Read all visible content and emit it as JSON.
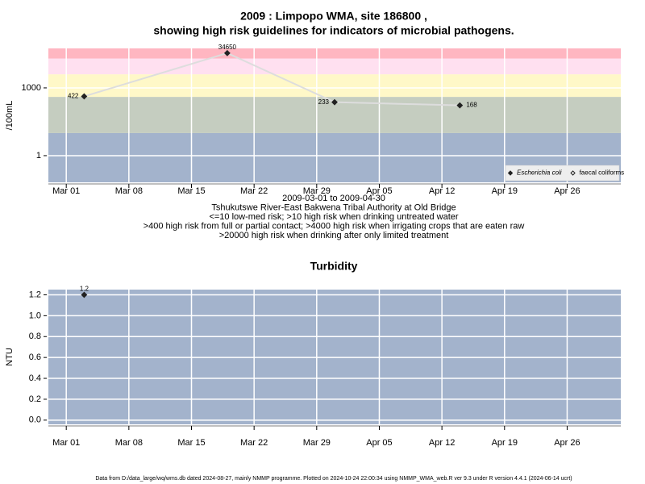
{
  "chart_data": [
    {
      "type": "line",
      "title": [
        "2009 : Limpopo WMA, site 186800 ,",
        "showing high risk guidelines for indicators of microbial pathogens."
      ],
      "ylabel": "/100mL",
      "notes": [
        "2009-03-01 to 2009-04-30",
        "Tshukutswe River-East Bakwena Tribal Authority at Old Bridge",
        "<=10 low-med risk; >10 high risk when drinking untreated water",
        ">400 high risk from full or partial contact; >4000 high risk when irrigating crops that are eaten raw",
        ">20000 high risk when drinking after only limited treatment"
      ],
      "x": [
        "2009-03-03",
        "2009-03-19",
        "2009-03-31",
        "2009-04-14"
      ],
      "series": [
        {
          "name": "Escherichia coli",
          "color": "#222222",
          "marker": "filled",
          "line_color": "#dddddd",
          "values": [
            422,
            34650,
            233,
            168
          ]
        },
        {
          "name": "faecal coliforms",
          "color": "#222222",
          "marker": "open",
          "line_color": "#dddddd",
          "values": [
            null,
            null,
            null,
            null
          ]
        }
      ],
      "xlim": [
        "2009-02-27",
        "2009-05-02"
      ],
      "xticks": [
        {
          "value": "2009-03-01",
          "label": "Mar 01"
        },
        {
          "value": "2009-03-08",
          "label": "Mar 08"
        },
        {
          "value": "2009-03-15",
          "label": "Mar 15"
        },
        {
          "value": "2009-03-22",
          "label": "Mar 22"
        },
        {
          "value": "2009-03-29",
          "label": "Mar 29"
        },
        {
          "value": "2009-04-05",
          "label": "Apr 05"
        },
        {
          "value": "2009-04-12",
          "label": "Apr 12"
        },
        {
          "value": "2009-04-19",
          "label": "Apr 19"
        },
        {
          "value": "2009-04-26",
          "label": "Apr 26"
        }
      ],
      "ylim": [
        0.066,
        56000
      ],
      "yticks": [
        1,
        1000
      ],
      "yscale": "log",
      "grid": true,
      "bands": [
        {
          "upto": 10,
          "color": "#a3b3cc"
        },
        {
          "upto": 400,
          "color": "#c5cdc0"
        },
        {
          "upto": 4000,
          "color": "#fff8c8"
        },
        {
          "upto": 20000,
          "color": "#ffe0f0"
        },
        {
          "color": "#ffb6c1"
        }
      ],
      "legend": "lower right"
    },
    {
      "type": "line",
      "title": [
        "Turbidity"
      ],
      "ylabel": "NTU",
      "x": [
        "2009-03-03"
      ],
      "series": [
        {
          "color": "#222222",
          "marker": "filled",
          "line_color": "#dddddd",
          "values": [
            1.2
          ]
        }
      ],
      "xlim": [
        "2009-02-27",
        "2009-05-02"
      ],
      "xticks": [
        {
          "value": "2009-03-01",
          "label": "Mar 01"
        },
        {
          "value": "2009-03-08",
          "label": "Mar 08"
        },
        {
          "value": "2009-03-15",
          "label": "Mar 15"
        },
        {
          "value": "2009-03-22",
          "label": "Mar 22"
        },
        {
          "value": "2009-03-29",
          "label": "Mar 29"
        },
        {
          "value": "2009-04-05",
          "label": "Apr 05"
        },
        {
          "value": "2009-04-12",
          "label": "Apr 12"
        },
        {
          "value": "2009-04-19",
          "label": "Apr 19"
        },
        {
          "value": "2009-04-26",
          "label": "Apr 26"
        }
      ],
      "ylim": [
        -0.04,
        1.25
      ],
      "yticks": [
        {
          "value": 0,
          "label": "0.0"
        },
        0.2,
        0.4,
        0.6,
        0.8,
        {
          "value": 1,
          "label": "1.0"
        },
        1.2
      ],
      "yscale": "linear",
      "grid": true,
      "background": "#a3b3cc"
    }
  ],
  "footer": "Data from D:/data_large/wq/wms.db dated 2024-08-27, mainly NMMP programme. Plotted on 2024-10-24 22:00:34 using NMMP_WMA_web.R ver 9.3 under R version 4.4.1 (2024-06-14 ucrt)"
}
